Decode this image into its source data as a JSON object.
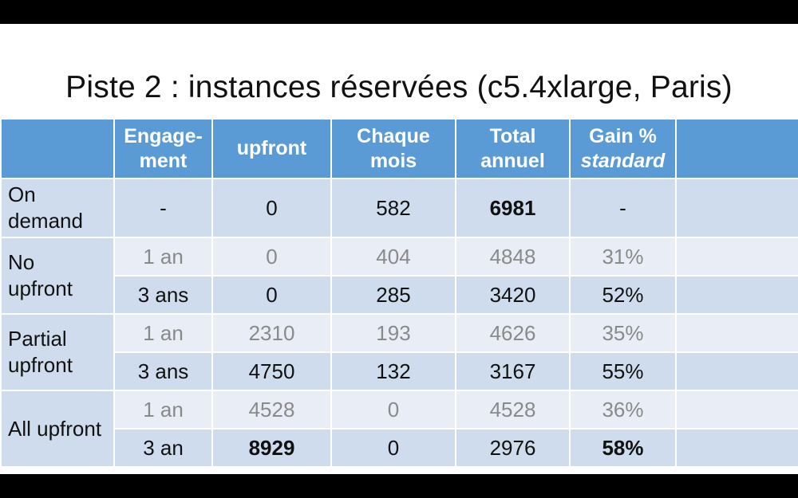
{
  "title": "Piste 2 : instances réservées (c5.4xlarge, Paris)",
  "header": {
    "col0": "",
    "engagement": [
      "Engage-",
      "ment"
    ],
    "upfront": "upfront",
    "chaque_mois": [
      "Chaque",
      "mois"
    ],
    "total_annuel": [
      "Total",
      "annuel"
    ],
    "gain": [
      "Gain %",
      "standard"
    ],
    "col6": ""
  },
  "rows": {
    "on_demand": {
      "label": [
        "On",
        "demand"
      ],
      "engagement": "-",
      "upfront": "0",
      "mois": "582",
      "total": "6981",
      "gain": "-"
    },
    "no_upfront": {
      "label": [
        "No",
        "upfront"
      ],
      "r1": {
        "engagement": "1 an",
        "upfront": "0",
        "mois": "404",
        "total": "4848",
        "gain": "31%"
      },
      "r2": {
        "engagement": "3 ans",
        "upfront": "0",
        "mois": "285",
        "total": "3420",
        "gain": "52%"
      }
    },
    "partial_upfront": {
      "label": [
        "Partial",
        "upfront"
      ],
      "r1": {
        "engagement": "1 an",
        "upfront": "2310",
        "mois": "193",
        "total": "4626",
        "gain": "35%"
      },
      "r2": {
        "engagement": "3 ans",
        "upfront": "4750",
        "mois": "132",
        "total": "3167",
        "gain": "55%"
      }
    },
    "all_upfront": {
      "label": "All upfront",
      "r1": {
        "engagement": "1 an",
        "upfront": "4528",
        "mois": "0",
        "total": "4528",
        "gain": "36%"
      },
      "r2": {
        "engagement": "3 an",
        "upfront": "8929",
        "mois": "0",
        "total": "2976",
        "gain": "58%"
      }
    }
  },
  "colors": {
    "header_bg": "#5b9bd5",
    "band_dark": "#cfdcee",
    "band_light": "#e8edf6",
    "muted_text": "#8a8a8a"
  }
}
